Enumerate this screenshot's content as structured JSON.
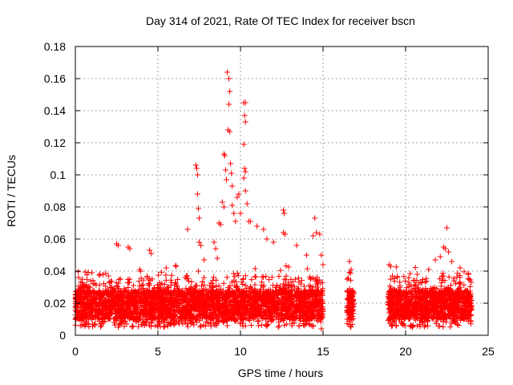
{
  "chart_data": {
    "type": "scatter",
    "title": "Day 314 of 2021, Rate Of TEC Index for receiver bscn",
    "xlabel": "GPS time / hours",
    "ylabel": "ROTI / TECUs",
    "xlim": [
      0,
      25
    ],
    "ylim": [
      0,
      0.18
    ],
    "xticks": [
      "0",
      "5",
      "10",
      "15",
      "20",
      "25"
    ],
    "yticks": [
      "0",
      "0.02",
      "0.04",
      "0.06",
      "0.08",
      "0.1",
      "0.12",
      "0.14",
      "0.16",
      "0.18"
    ],
    "grid": true,
    "marker": "+",
    "color": "#ff0000",
    "data_gaps_hours": [
      [
        15.0,
        16.5
      ],
      [
        16.9,
        18.9
      ]
    ],
    "series": [
      {
        "points": [
          [
            0.2,
            0.036
          ],
          [
            0.5,
            0.031
          ],
          [
            1.0,
            0.039
          ],
          [
            1.5,
            0.038
          ],
          [
            2.0,
            0.037
          ],
          [
            2.5,
            0.057
          ],
          [
            2.6,
            0.056
          ],
          [
            3.2,
            0.055
          ],
          [
            3.3,
            0.054
          ],
          [
            3.9,
            0.041
          ],
          [
            4.5,
            0.053
          ],
          [
            4.6,
            0.051
          ],
          [
            5.5,
            0.042
          ],
          [
            6.1,
            0.043
          ],
          [
            6.8,
            0.066
          ],
          [
            7.3,
            0.106
          ],
          [
            7.35,
            0.104
          ],
          [
            7.4,
            0.1
          ],
          [
            7.4,
            0.088
          ],
          [
            7.45,
            0.079
          ],
          [
            7.5,
            0.073
          ],
          [
            7.5,
            0.058
          ],
          [
            7.6,
            0.056
          ],
          [
            7.8,
            0.047
          ],
          [
            8.4,
            0.058
          ],
          [
            8.5,
            0.054
          ],
          [
            8.6,
            0.048
          ],
          [
            8.7,
            0.07
          ],
          [
            8.8,
            0.069
          ],
          [
            8.9,
            0.083
          ],
          [
            9.0,
            0.08
          ],
          [
            9.0,
            0.113
          ],
          [
            9.05,
            0.112
          ],
          [
            9.1,
            0.103
          ],
          [
            9.15,
            0.097
          ],
          [
            9.2,
            0.164
          ],
          [
            9.3,
            0.16
          ],
          [
            9.35,
            0.152
          ],
          [
            9.3,
            0.144
          ],
          [
            9.25,
            0.128
          ],
          [
            9.35,
            0.127
          ],
          [
            9.4,
            0.107
          ],
          [
            9.45,
            0.101
          ],
          [
            9.5,
            0.093
          ],
          [
            9.5,
            0.081
          ],
          [
            9.6,
            0.076
          ],
          [
            9.7,
            0.071
          ],
          [
            9.8,
            0.086
          ],
          [
            9.9,
            0.088
          ],
          [
            10.0,
            0.076
          ],
          [
            10.2,
            0.145
          ],
          [
            10.3,
            0.145
          ],
          [
            10.25,
            0.137
          ],
          [
            10.3,
            0.133
          ],
          [
            10.2,
            0.119
          ],
          [
            10.25,
            0.104
          ],
          [
            10.3,
            0.102
          ],
          [
            10.2,
            0.098
          ],
          [
            10.3,
            0.09
          ],
          [
            10.4,
            0.082
          ],
          [
            10.5,
            0.071
          ],
          [
            10.6,
            0.071
          ],
          [
            11.0,
            0.068
          ],
          [
            11.4,
            0.066
          ],
          [
            11.6,
            0.06
          ],
          [
            12.0,
            0.058
          ],
          [
            12.6,
            0.078
          ],
          [
            12.65,
            0.076
          ],
          [
            12.6,
            0.064
          ],
          [
            12.7,
            0.063
          ],
          [
            13.4,
            0.056
          ],
          [
            14.0,
            0.05
          ],
          [
            14.4,
            0.062
          ],
          [
            14.5,
            0.073
          ],
          [
            14.6,
            0.064
          ],
          [
            14.8,
            0.063
          ],
          [
            14.9,
            0.05
          ],
          [
            15.0,
            0.044
          ],
          [
            16.6,
            0.046
          ],
          [
            16.7,
            0.041
          ],
          [
            16.6,
            0.011
          ],
          [
            16.7,
            0.013
          ],
          [
            19.0,
            0.044
          ],
          [
            19.1,
            0.043
          ],
          [
            19.2,
            0.037
          ],
          [
            19.2,
            0.006
          ],
          [
            19.5,
            0.036
          ],
          [
            20.2,
            0.033
          ],
          [
            20.7,
            0.038
          ],
          [
            21.4,
            0.041
          ],
          [
            21.8,
            0.047
          ],
          [
            22.1,
            0.049
          ],
          [
            22.3,
            0.055
          ],
          [
            22.4,
            0.054
          ],
          [
            22.5,
            0.067
          ],
          [
            22.6,
            0.052
          ],
          [
            22.8,
            0.046
          ],
          [
            23.3,
            0.042
          ],
          [
            23.8,
            0.038
          ],
          [
            0.3,
            0.006
          ],
          [
            1.2,
            0.007
          ],
          [
            2.8,
            0.007
          ],
          [
            4.3,
            0.007
          ],
          [
            5.8,
            0.007
          ],
          [
            7.6,
            0.006
          ],
          [
            9.2,
            0.006
          ],
          [
            11.1,
            0.006
          ],
          [
            12.8,
            0.007
          ],
          [
            14.9,
            0.004
          ],
          [
            21.0,
            0.008
          ],
          [
            23.0,
            0.008
          ]
        ]
      }
    ]
  }
}
